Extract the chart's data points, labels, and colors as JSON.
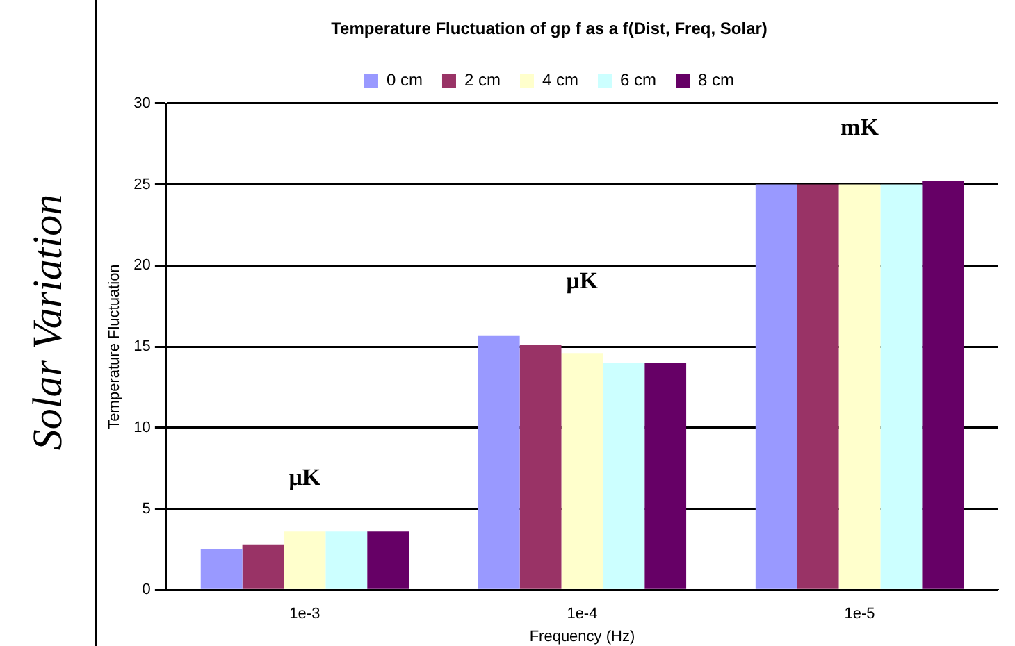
{
  "chart_data": {
    "type": "bar",
    "title": "Temperature Fluctuation of gp f as a f(Dist, Freq, Solar)",
    "xlabel": "Frequency (Hz)",
    "ylabel": "Temperature Fluctuation",
    "categories": [
      "1e-3",
      "1e-4",
      "1e-5"
    ],
    "series": [
      {
        "name": "0 cm",
        "color": "#9999ff",
        "values": [
          2.5,
          15.7,
          25
        ]
      },
      {
        "name": "2 cm",
        "color": "#993366",
        "values": [
          2.8,
          15.1,
          25
        ]
      },
      {
        "name": "4 cm",
        "color": "#ffffcc",
        "values": [
          3.6,
          14.6,
          25
        ]
      },
      {
        "name": "6 cm",
        "color": "#ccffff",
        "values": [
          3.6,
          14,
          25
        ]
      },
      {
        "name": "8 cm",
        "color": "#660066",
        "values": [
          3.6,
          14,
          25.2
        ]
      }
    ],
    "ylim": [
      0,
      30
    ],
    "yticks": [
      0,
      5,
      10,
      15,
      20,
      25,
      30
    ],
    "grid": "y",
    "legend": "top",
    "annotations": [
      "Solar Variation",
      "μK",
      "μK",
      "mK"
    ]
  }
}
